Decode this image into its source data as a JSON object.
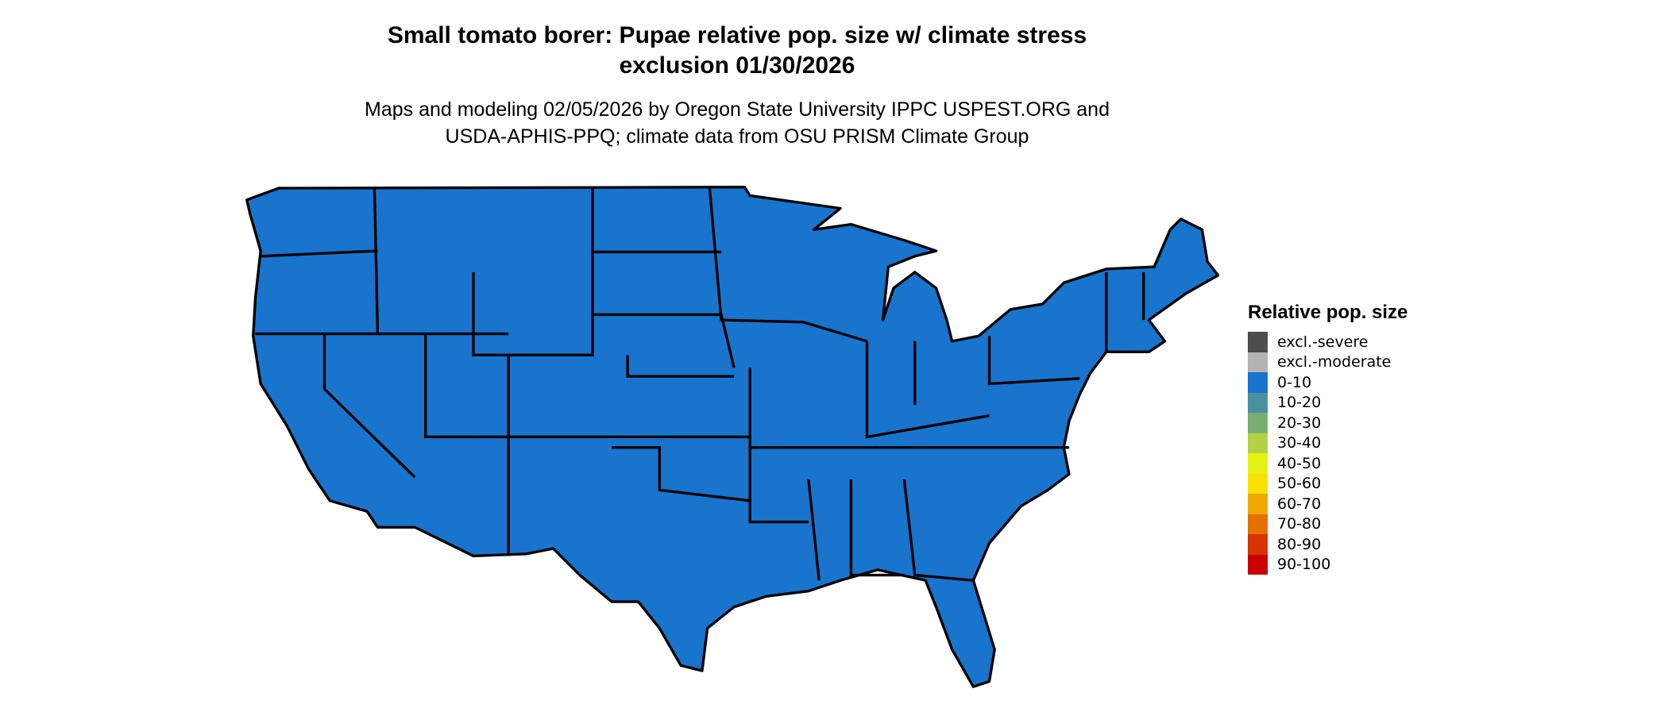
{
  "title_line1": "Small tomato borer: Pupae relative pop. size w/ climate stress",
  "title_line2": "exclusion 01/30/2026",
  "subtitle_line1": "Maps and modeling 02/05/2026 by Oregon State University IPPC USPEST.ORG and",
  "subtitle_line2": "USDA-APHIS-PPQ; climate data from OSU PRISM Climate Group",
  "map": {
    "region": "Contiguous United States",
    "fill_category": "0-10",
    "fill_color": "#1874cd",
    "border_color": "#000000"
  },
  "legend": {
    "title": "Relative pop. size",
    "items": [
      {
        "label": "excl.-severe",
        "color": "#4d4d4d"
      },
      {
        "label": "excl.-moderate",
        "color": "#b3b3b3"
      },
      {
        "label": "0-10",
        "color": "#1874cd"
      },
      {
        "label": "10-20",
        "color": "#4a919e"
      },
      {
        "label": "20-30",
        "color": "#7cae74"
      },
      {
        "label": "30-40",
        "color": "#b2d145"
      },
      {
        "label": "40-50",
        "color": "#e5f014"
      },
      {
        "label": "50-60",
        "color": "#f8e000"
      },
      {
        "label": "60-70",
        "color": "#f0a800"
      },
      {
        "label": "70-80",
        "color": "#e47000"
      },
      {
        "label": "80-90",
        "color": "#d83400"
      },
      {
        "label": "90-100",
        "color": "#cc0000"
      }
    ]
  }
}
